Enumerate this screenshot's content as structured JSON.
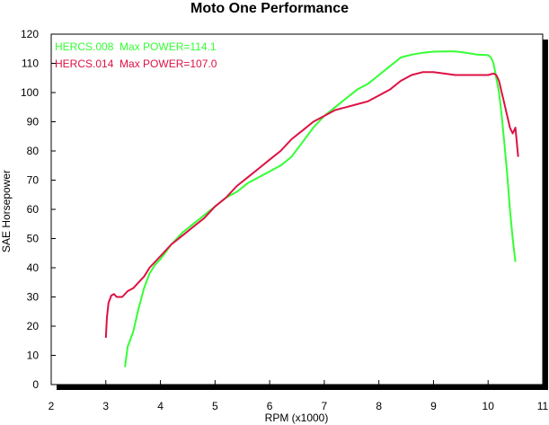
{
  "chart_data": {
    "type": "line",
    "title": "Moto One Performance",
    "xlabel": "RPM (x1000)",
    "ylabel": "SAE Horsepower",
    "xlim": [
      2,
      11
    ],
    "ylim": [
      0,
      120
    ],
    "xticks": [
      "2",
      "3",
      "4",
      "5",
      "6",
      "7",
      "8",
      "9",
      "10",
      "11"
    ],
    "yticks": [
      "0",
      "10",
      "20",
      "30",
      "40",
      "50",
      "60",
      "70",
      "80",
      "90",
      "100",
      "110",
      "120"
    ],
    "grid": false,
    "legend_position": "top-left",
    "series": [
      {
        "name": "HERCS.008  Max POWER=114.1",
        "color": "#33ff33",
        "x": [
          3.35,
          3.4,
          3.5,
          3.6,
          3.7,
          3.8,
          3.9,
          4.0,
          4.2,
          4.4,
          4.6,
          4.8,
          5.0,
          5.2,
          5.4,
          5.6,
          5.8,
          6.0,
          6.2,
          6.4,
          6.6,
          6.8,
          7.0,
          7.2,
          7.4,
          7.6,
          7.8,
          8.0,
          8.2,
          8.4,
          8.6,
          8.8,
          9.0,
          9.2,
          9.4,
          9.6,
          9.8,
          10.0,
          10.05,
          10.1,
          10.15,
          10.2,
          10.25,
          10.3,
          10.35,
          10.4,
          10.45,
          10.5
        ],
        "y": [
          6,
          13,
          18,
          26,
          33,
          38,
          41,
          43,
          48,
          52,
          55,
          58,
          61,
          64,
          66,
          69,
          71,
          73,
          75,
          78,
          83,
          88,
          92,
          95,
          98,
          101,
          103,
          106,
          109,
          112,
          113,
          113.6,
          114,
          114.1,
          114.1,
          113.6,
          113,
          112.8,
          112,
          110,
          105,
          100,
          92,
          82,
          72,
          60,
          50,
          42
        ]
      },
      {
        "name": "HERCS.014  Max POWER=107.0",
        "color": "#dd1144",
        "x": [
          3.0,
          3.02,
          3.05,
          3.1,
          3.15,
          3.2,
          3.3,
          3.4,
          3.5,
          3.6,
          3.7,
          3.8,
          3.9,
          4.0,
          4.2,
          4.4,
          4.6,
          4.8,
          5.0,
          5.2,
          5.4,
          5.6,
          5.8,
          6.0,
          6.2,
          6.4,
          6.6,
          6.8,
          7.0,
          7.2,
          7.4,
          7.6,
          7.8,
          8.0,
          8.2,
          8.4,
          8.6,
          8.8,
          9.0,
          9.2,
          9.4,
          9.6,
          9.8,
          10.0,
          10.1,
          10.15,
          10.2,
          10.25,
          10.3,
          10.35,
          10.4,
          10.45,
          10.5,
          10.55
        ],
        "y": [
          16,
          23,
          28,
          30.5,
          31,
          30,
          30,
          32,
          33,
          35,
          37,
          40,
          42,
          44,
          48,
          51,
          54,
          57,
          61,
          64,
          68,
          71,
          74,
          77,
          80,
          84,
          87,
          90,
          92,
          94,
          95,
          96,
          97,
          99,
          101,
          104,
          106,
          107,
          107,
          106.5,
          106,
          106,
          106,
          106,
          106.5,
          106,
          104,
          100,
          96,
          92,
          88,
          86,
          88,
          78
        ]
      }
    ]
  }
}
